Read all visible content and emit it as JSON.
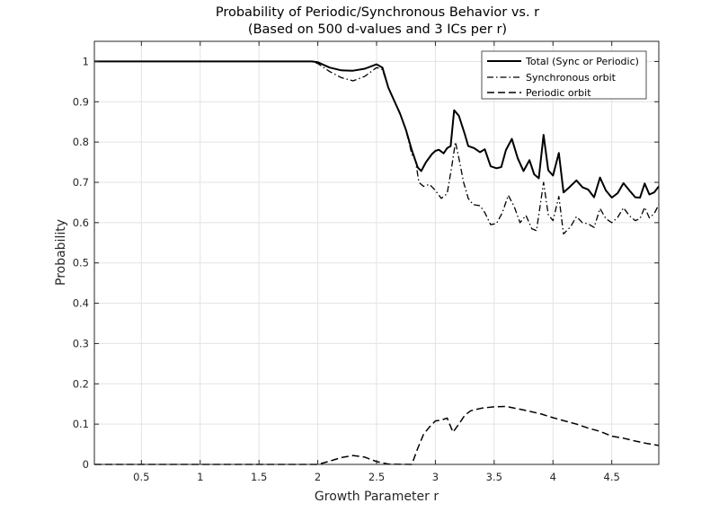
{
  "chart_data": {
    "type": "line",
    "title": [
      "Probability of Periodic/Synchronous Behavior vs. r",
      "(Based on 500 d-values and 3 ICs per r)"
    ],
    "xlabel": "Growth Parameter r",
    "ylabel": "Probability",
    "xlim": [
      0.1,
      4.9
    ],
    "ylim": [
      0,
      1.05
    ],
    "xticks": [
      0.5,
      1,
      1.5,
      2,
      2.5,
      3,
      3.5,
      4,
      4.5
    ],
    "xtick_labels": [
      "0.5",
      "1",
      "1.5",
      "2",
      "2.5",
      "3",
      "3.5",
      "4",
      "4.5"
    ],
    "yticks": [
      0,
      0.1,
      0.2,
      0.3,
      0.4,
      0.5,
      0.6,
      0.7,
      0.8,
      0.9,
      1
    ],
    "ytick_labels": [
      "0",
      "0.1",
      "0.2",
      "0.3",
      "0.4",
      "0.5",
      "0.6",
      "0.7",
      "0.8",
      "0.9",
      "1"
    ],
    "grid": true,
    "legend_position": "top-right",
    "series": [
      {
        "name": "Total (Sync or Periodic)",
        "style": "solid",
        "color": "#000000",
        "points": [
          [
            0.1,
            1
          ],
          [
            1.95,
            1
          ],
          [
            2.0,
            0.998
          ],
          [
            2.1,
            0.985
          ],
          [
            2.2,
            0.978
          ],
          [
            2.3,
            0.977
          ],
          [
            2.4,
            0.982
          ],
          [
            2.5,
            0.993
          ],
          [
            2.55,
            0.985
          ],
          [
            2.6,
            0.935
          ],
          [
            2.7,
            0.87
          ],
          [
            2.75,
            0.83
          ],
          [
            2.8,
            0.78
          ],
          [
            2.85,
            0.737
          ],
          [
            2.88,
            0.728
          ],
          [
            2.92,
            0.75
          ],
          [
            2.97,
            0.77
          ],
          [
            3.0,
            0.778
          ],
          [
            3.03,
            0.781
          ],
          [
            3.07,
            0.772
          ],
          [
            3.1,
            0.785
          ],
          [
            3.13,
            0.79
          ],
          [
            3.16,
            0.879
          ],
          [
            3.2,
            0.865
          ],
          [
            3.25,
            0.82
          ],
          [
            3.28,
            0.79
          ],
          [
            3.33,
            0.785
          ],
          [
            3.38,
            0.775
          ],
          [
            3.42,
            0.782
          ],
          [
            3.47,
            0.74
          ],
          [
            3.52,
            0.735
          ],
          [
            3.56,
            0.738
          ],
          [
            3.6,
            0.78
          ],
          [
            3.65,
            0.808
          ],
          [
            3.7,
            0.76
          ],
          [
            3.75,
            0.728
          ],
          [
            3.8,
            0.755
          ],
          [
            3.84,
            0.72
          ],
          [
            3.88,
            0.71
          ],
          [
            3.92,
            0.818
          ],
          [
            3.96,
            0.73
          ],
          [
            4.0,
            0.717
          ],
          [
            4.05,
            0.773
          ],
          [
            4.09,
            0.675
          ],
          [
            4.14,
            0.688
          ],
          [
            4.2,
            0.705
          ],
          [
            4.25,
            0.688
          ],
          [
            4.3,
            0.682
          ],
          [
            4.35,
            0.663
          ],
          [
            4.4,
            0.712
          ],
          [
            4.45,
            0.68
          ],
          [
            4.5,
            0.662
          ],
          [
            4.55,
            0.673
          ],
          [
            4.6,
            0.698
          ],
          [
            4.65,
            0.68
          ],
          [
            4.7,
            0.663
          ],
          [
            4.74,
            0.662
          ],
          [
            4.78,
            0.697
          ],
          [
            4.82,
            0.67
          ],
          [
            4.86,
            0.675
          ],
          [
            4.9,
            0.69
          ]
        ]
      },
      {
        "name": "Synchronous orbit",
        "style": "dashdot",
        "color": "#000000",
        "points": [
          [
            0.1,
            1
          ],
          [
            1.95,
            1
          ],
          [
            2.0,
            0.995
          ],
          [
            2.1,
            0.975
          ],
          [
            2.2,
            0.96
          ],
          [
            2.3,
            0.952
          ],
          [
            2.4,
            0.963
          ],
          [
            2.5,
            0.985
          ],
          [
            2.55,
            0.98
          ],
          [
            2.6,
            0.935
          ],
          [
            2.7,
            0.87
          ],
          [
            2.75,
            0.83
          ],
          [
            2.8,
            0.77
          ],
          [
            2.83,
            0.755
          ],
          [
            2.86,
            0.7
          ],
          [
            2.9,
            0.69
          ],
          [
            2.95,
            0.695
          ],
          [
            3.0,
            0.68
          ],
          [
            3.05,
            0.66
          ],
          [
            3.1,
            0.672
          ],
          [
            3.14,
            0.74
          ],
          [
            3.17,
            0.8
          ],
          [
            3.2,
            0.76
          ],
          [
            3.24,
            0.7
          ],
          [
            3.28,
            0.66
          ],
          [
            3.32,
            0.645
          ],
          [
            3.38,
            0.642
          ],
          [
            3.42,
            0.625
          ],
          [
            3.47,
            0.595
          ],
          [
            3.52,
            0.598
          ],
          [
            3.57,
            0.625
          ],
          [
            3.62,
            0.668
          ],
          [
            3.67,
            0.64
          ],
          [
            3.72,
            0.6
          ],
          [
            3.77,
            0.618
          ],
          [
            3.82,
            0.585
          ],
          [
            3.86,
            0.58
          ],
          [
            3.92,
            0.7
          ],
          [
            3.96,
            0.62
          ],
          [
            4.0,
            0.605
          ],
          [
            4.05,
            0.665
          ],
          [
            4.09,
            0.572
          ],
          [
            4.15,
            0.59
          ],
          [
            4.2,
            0.615
          ],
          [
            4.25,
            0.6
          ],
          [
            4.3,
            0.597
          ],
          [
            4.35,
            0.588
          ],
          [
            4.4,
            0.635
          ],
          [
            4.45,
            0.61
          ],
          [
            4.5,
            0.6
          ],
          [
            4.55,
            0.613
          ],
          [
            4.6,
            0.637
          ],
          [
            4.65,
            0.617
          ],
          [
            4.7,
            0.605
          ],
          [
            4.74,
            0.61
          ],
          [
            4.78,
            0.638
          ],
          [
            4.82,
            0.612
          ],
          [
            4.86,
            0.622
          ],
          [
            4.9,
            0.645
          ]
        ]
      },
      {
        "name": "Periodic orbit",
        "style": "dashed",
        "color": "#000000",
        "points": [
          [
            0.1,
            0
          ],
          [
            2.0,
            0
          ],
          [
            2.1,
            0.008
          ],
          [
            2.2,
            0.017
          ],
          [
            2.3,
            0.022
          ],
          [
            2.4,
            0.018
          ],
          [
            2.5,
            0.007
          ],
          [
            2.6,
            0.001
          ],
          [
            2.8,
            0
          ],
          [
            2.85,
            0.04
          ],
          [
            2.9,
            0.075
          ],
          [
            2.95,
            0.093
          ],
          [
            3.0,
            0.108
          ],
          [
            3.05,
            0.11
          ],
          [
            3.1,
            0.115
          ],
          [
            3.15,
            0.08
          ],
          [
            3.2,
            0.1
          ],
          [
            3.25,
            0.122
          ],
          [
            3.3,
            0.133
          ],
          [
            3.4,
            0.14
          ],
          [
            3.5,
            0.143
          ],
          [
            3.6,
            0.144
          ],
          [
            3.7,
            0.138
          ],
          [
            3.8,
            0.132
          ],
          [
            3.9,
            0.125
          ],
          [
            4.0,
            0.116
          ],
          [
            4.1,
            0.108
          ],
          [
            4.2,
            0.1
          ],
          [
            4.3,
            0.09
          ],
          [
            4.4,
            0.082
          ],
          [
            4.5,
            0.07
          ],
          [
            4.6,
            0.065
          ],
          [
            4.7,
            0.058
          ],
          [
            4.8,
            0.052
          ],
          [
            4.9,
            0.047
          ]
        ]
      }
    ]
  }
}
